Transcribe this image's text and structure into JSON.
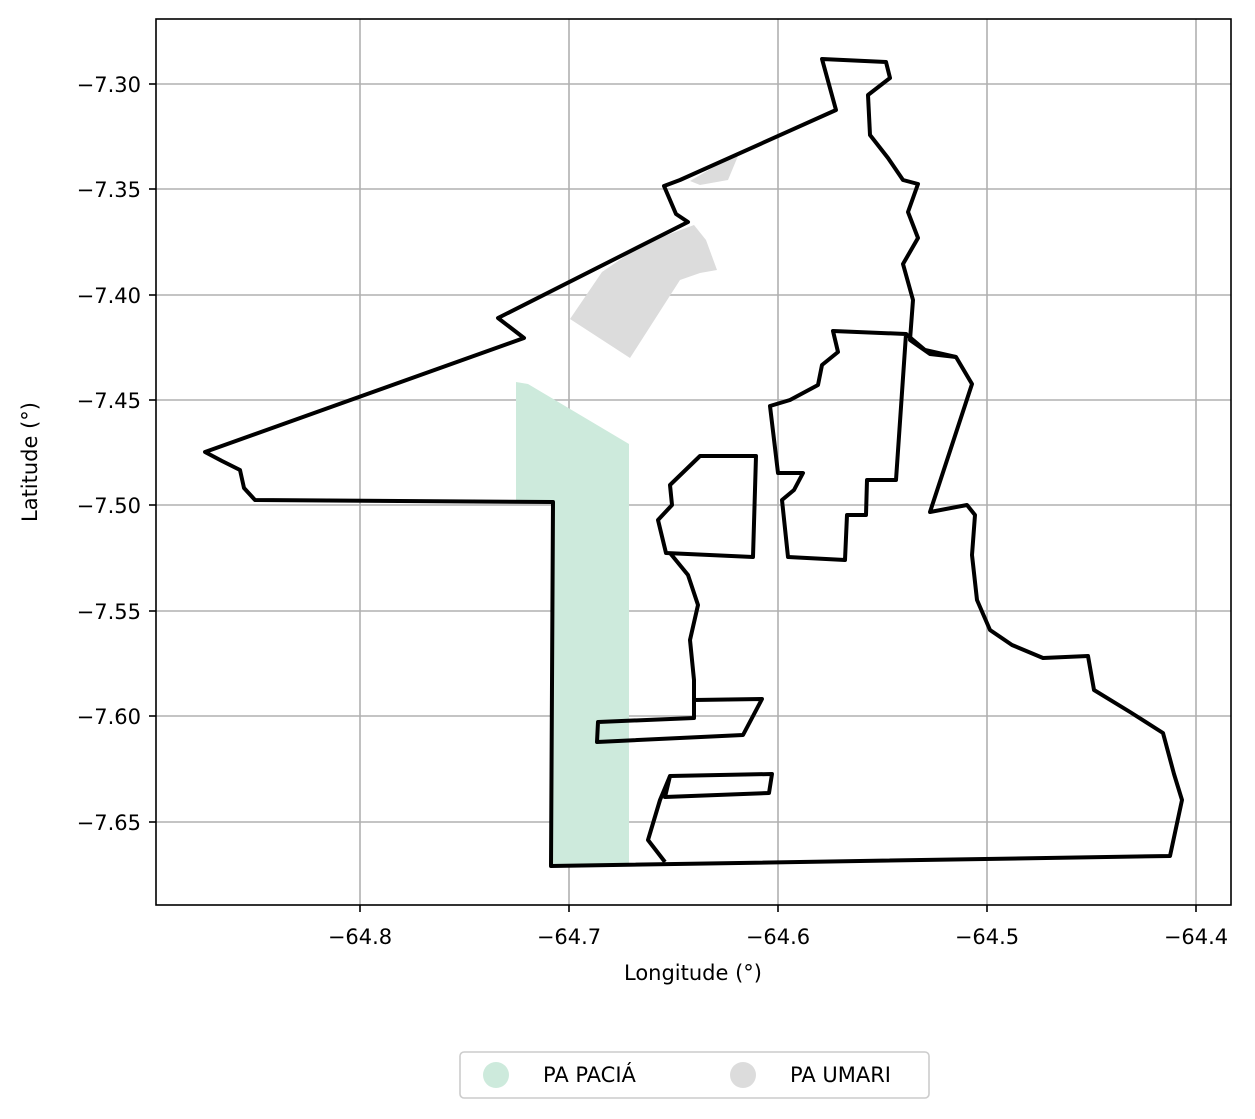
{
  "map": {
    "xlabel": "Longitude (°)",
    "ylabel": "Latitude (°)",
    "x_ticks": [
      "−64.8",
      "−64.7",
      "−64.6",
      "−64.5",
      "−64.4"
    ],
    "y_ticks": [
      "−7.30",
      "−7.35",
      "−7.40",
      "−7.45",
      "−7.50",
      "−7.55",
      "−7.60",
      "−7.65"
    ],
    "grid": true
  },
  "legend": {
    "placement": "bottom-center",
    "items": [
      {
        "label": "PA PACIÁ",
        "color": "#cdeadc"
      },
      {
        "label": "PA UMARI",
        "color": "#dcdcdc"
      }
    ]
  },
  "colors": {
    "boundary": "#000000",
    "grid": "#b0b0b0"
  }
}
